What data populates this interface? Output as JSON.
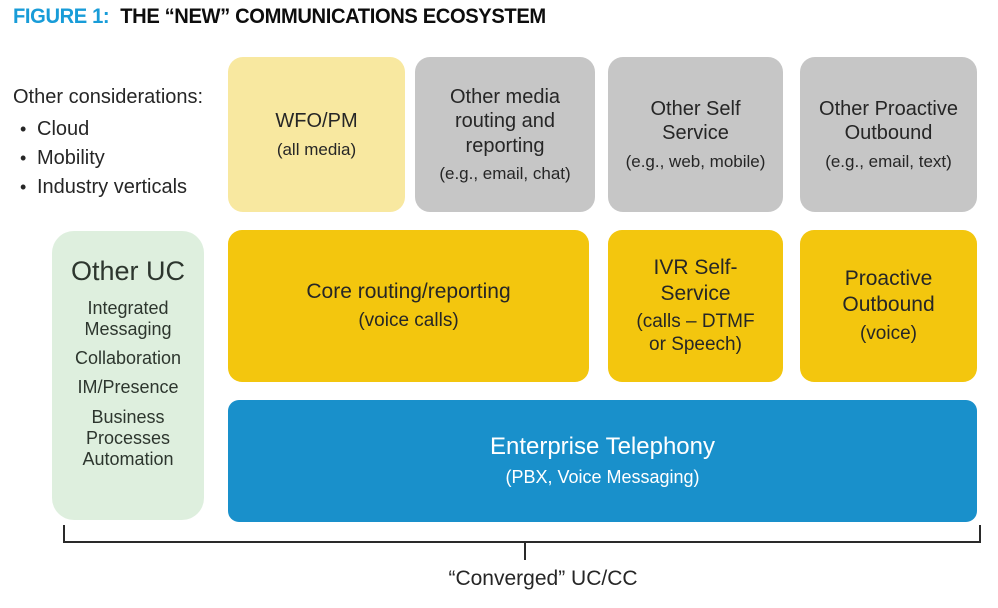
{
  "title": {
    "figure_label": "FIGURE 1:",
    "text": "THE “NEW” COMMUNICATIONS ECOSYSTEM"
  },
  "considerations": {
    "heading": "Other considerations:",
    "bullet": "•",
    "items": [
      "Cloud",
      "Mobility",
      "Industry verticals"
    ]
  },
  "top_row": [
    {
      "title": "WFO/PM",
      "subtitle": "(all media)"
    },
    {
      "title": "Other media\nrouting and\nreporting",
      "subtitle": "(e.g., email, chat)"
    },
    {
      "title": "Other Self\nService",
      "subtitle": "(e.g., web, mobile)"
    },
    {
      "title": "Other Proactive\nOutbound",
      "subtitle": "(e.g., email, text)"
    }
  ],
  "middle_row": [
    {
      "title": "Core routing/reporting",
      "subtitle": "(voice calls)"
    },
    {
      "title": "IVR Self-\nService",
      "subtitle": "(calls – DTMF\nor Speech)"
    },
    {
      "title": "Proactive\nOutbound",
      "subtitle": "(voice)"
    }
  ],
  "other_uc": {
    "title": "Other UC",
    "items": [
      "Integrated\nMessaging",
      "Collaboration",
      "IM/Presence",
      "Business\nProcesses\nAutomation"
    ]
  },
  "enterprise": {
    "title": "Enterprise Telephony",
    "subtitle": "(PBX, Voice Messaging)"
  },
  "bracket": {
    "label": "“Converged” UC/CC"
  },
  "colors": {
    "figure_label_blue": "#189CD8",
    "pale_yellow": "#F8E8A0",
    "gray": "#C6C6C6",
    "gold": "#F3C60E",
    "pale_green": "#DEEFDE",
    "enterprise_blue": "#1990CB",
    "text_dark": "#262626",
    "bracket_black": "#2A2A2A"
  }
}
